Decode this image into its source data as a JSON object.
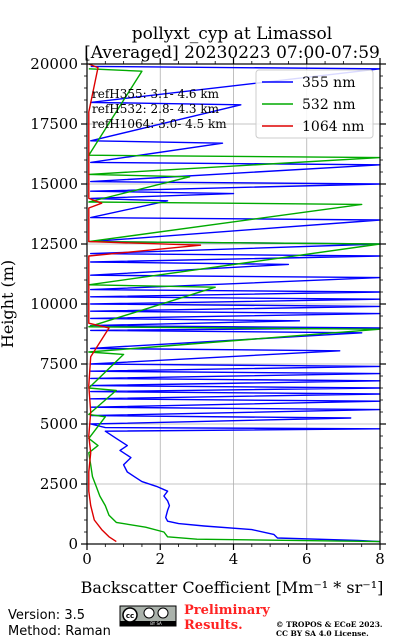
{
  "chart_data": {
    "type": "line",
    "title_line1": "pollyxt_cyp at Limassol",
    "title_line2": "[Averaged] 20230223 07:00-07:59",
    "xlabel": "Backscatter Coefficient [Mm⁻¹ * sr⁻¹]",
    "ylabel": "Height (m)",
    "xlim": [
      0,
      8
    ],
    "ylim": [
      0,
      20000
    ],
    "xticks": [
      0,
      2,
      4,
      6,
      8
    ],
    "yticks": [
      0,
      2500,
      5000,
      7500,
      10000,
      12500,
      15000,
      17500,
      20000
    ],
    "ytick_labels": [
      "0",
      "2500",
      "5000",
      "7500",
      "10000",
      "12500",
      "15000",
      "17500",
      "20000"
    ],
    "grid": true,
    "legend_position": "top-right",
    "annotations": [
      "refH355:  3.1- 4.6 km",
      "refH532:  2.8- 4.3 km",
      "refH1064:  3.0- 4.5 km"
    ],
    "series": [
      {
        "name": "355 nm",
        "color": "#0000ff",
        "points": [
          [
            8.0,
            100
          ],
          [
            7.4,
            150
          ],
          [
            5.2,
            250
          ],
          [
            5.1,
            400
          ],
          [
            4.5,
            600
          ],
          [
            3.2,
            750
          ],
          [
            2.5,
            850
          ],
          [
            2.2,
            950
          ],
          [
            2.15,
            1100
          ],
          [
            2.2,
            1400
          ],
          [
            2.25,
            1600
          ],
          [
            2.2,
            1800
          ],
          [
            2.1,
            2000
          ],
          [
            2.2,
            2200
          ],
          [
            1.9,
            2400
          ],
          [
            1.5,
            2600
          ],
          [
            1.3,
            2800
          ],
          [
            1.1,
            3000
          ],
          [
            1.0,
            3300
          ],
          [
            1.2,
            3600
          ],
          [
            0.9,
            3900
          ],
          [
            1.1,
            4100
          ],
          [
            0.8,
            4400
          ],
          [
            0.5,
            4700
          ],
          [
            8.0,
            4800
          ],
          [
            0.5,
            4850
          ],
          [
            0.1,
            5000
          ],
          [
            7.2,
            5250
          ],
          [
            0.1,
            5350
          ],
          [
            8.0,
            5600
          ],
          [
            0.1,
            5700
          ],
          [
            8.0,
            5950
          ],
          [
            0.1,
            6050
          ],
          [
            8.0,
            6250
          ],
          [
            0.1,
            6350
          ],
          [
            8.0,
            6500
          ],
          [
            0.1,
            6600
          ],
          [
            8.0,
            6800
          ],
          [
            0.1,
            6900
          ],
          [
            8.0,
            7100
          ],
          [
            0.1,
            7200
          ],
          [
            8.0,
            7400
          ],
          [
            0.1,
            7500
          ],
          [
            6.9,
            8050
          ],
          [
            0.1,
            8150
          ],
          [
            7.5,
            8800
          ],
          [
            0.1,
            8900
          ],
          [
            8.0,
            9000
          ],
          [
            0.1,
            9100
          ],
          [
            5.8,
            9300
          ],
          [
            0.1,
            9400
          ],
          [
            8.0,
            9600
          ],
          [
            0.1,
            9700
          ],
          [
            8.0,
            9900
          ],
          [
            0.1,
            10000
          ],
          [
            8.0,
            10200
          ],
          [
            0.1,
            10300
          ],
          [
            8.0,
            10500
          ],
          [
            0.1,
            10600
          ],
          [
            8.0,
            11100
          ],
          [
            0.1,
            11200
          ],
          [
            5.5,
            11650
          ],
          [
            0.1,
            11750
          ],
          [
            8.0,
            12000
          ],
          [
            0.1,
            12100
          ],
          [
            8.0,
            12500
          ],
          [
            0.1,
            12600
          ],
          [
            8.0,
            13500
          ],
          [
            0.1,
            13600
          ],
          [
            2.2,
            14300
          ],
          [
            0.1,
            14400
          ],
          [
            4.0,
            14600
          ],
          [
            0.1,
            14700
          ],
          [
            8.0,
            15000
          ],
          [
            0.1,
            15100
          ],
          [
            8.0,
            15800
          ],
          [
            0.1,
            15900
          ],
          [
            3.7,
            16700
          ],
          [
            0.1,
            16800
          ],
          [
            4.2,
            18300
          ],
          [
            0.1,
            18400
          ],
          [
            8.0,
            19800
          ],
          [
            0.1,
            19900
          ]
        ]
      },
      {
        "name": "532 nm",
        "color": "#00aa00",
        "points": [
          [
            8.0,
            100
          ],
          [
            3.0,
            200
          ],
          [
            2.2,
            300
          ],
          [
            2.1,
            500
          ],
          [
            1.6,
            700
          ],
          [
            0.8,
            900
          ],
          [
            0.6,
            1200
          ],
          [
            0.5,
            1600
          ],
          [
            0.35,
            2000
          ],
          [
            0.25,
            2400
          ],
          [
            0.15,
            2800
          ],
          [
            0.1,
            3300
          ],
          [
            0.05,
            3800
          ],
          [
            0.3,
            4100
          ],
          [
            0.05,
            4400
          ],
          [
            0.5,
            5300
          ],
          [
            0.05,
            5400
          ],
          [
            0.8,
            6400
          ],
          [
            0.05,
            6500
          ],
          [
            1.0,
            7900
          ],
          [
            0.05,
            8000
          ],
          [
            8.0,
            8950
          ],
          [
            0.05,
            9050
          ],
          [
            3.5,
            10700
          ],
          [
            0.05,
            10800
          ],
          [
            8.0,
            12500
          ],
          [
            0.05,
            12600
          ],
          [
            7.5,
            14150
          ],
          [
            0.05,
            14250
          ],
          [
            2.8,
            15300
          ],
          [
            0.05,
            15400
          ],
          [
            8.0,
            16100
          ],
          [
            0.05,
            16200
          ],
          [
            1.5,
            19700
          ],
          [
            0.05,
            19800
          ]
        ]
      },
      {
        "name": "1064 nm",
        "color": "#dd0000",
        "points": [
          [
            0.8,
            100
          ],
          [
            0.6,
            300
          ],
          [
            0.4,
            600
          ],
          [
            0.2,
            1000
          ],
          [
            0.1,
            1600
          ],
          [
            0.05,
            2200
          ],
          [
            0.05,
            3000
          ],
          [
            0.1,
            3800
          ],
          [
            0.05,
            4500
          ],
          [
            0.1,
            5500
          ],
          [
            0.05,
            6600
          ],
          [
            0.1,
            7800
          ],
          [
            0.6,
            9000
          ],
          [
            0.05,
            9200
          ],
          [
            0.05,
            11000
          ],
          [
            0.05,
            12000
          ],
          [
            3.1,
            12450
          ],
          [
            0.05,
            12600
          ],
          [
            0.05,
            13500
          ],
          [
            0.05,
            14000
          ],
          [
            0.4,
            14200
          ],
          [
            0.05,
            14400
          ],
          [
            0.05,
            16000
          ],
          [
            0.05,
            18000
          ],
          [
            0.3,
            19850
          ],
          [
            0.05,
            20000
          ]
        ]
      }
    ]
  },
  "footer": {
    "version": "Version: 3.5",
    "method": "Method: Raman",
    "preliminary_line1": "Preliminary",
    "preliminary_line2": "Results.",
    "copyright_line1": "© TROPOS & ECoE 2023.",
    "copyright_line2": "CC BY SA 4.0 License.",
    "license_badge_text": "cc",
    "license_badge_sub": "BY SA"
  }
}
